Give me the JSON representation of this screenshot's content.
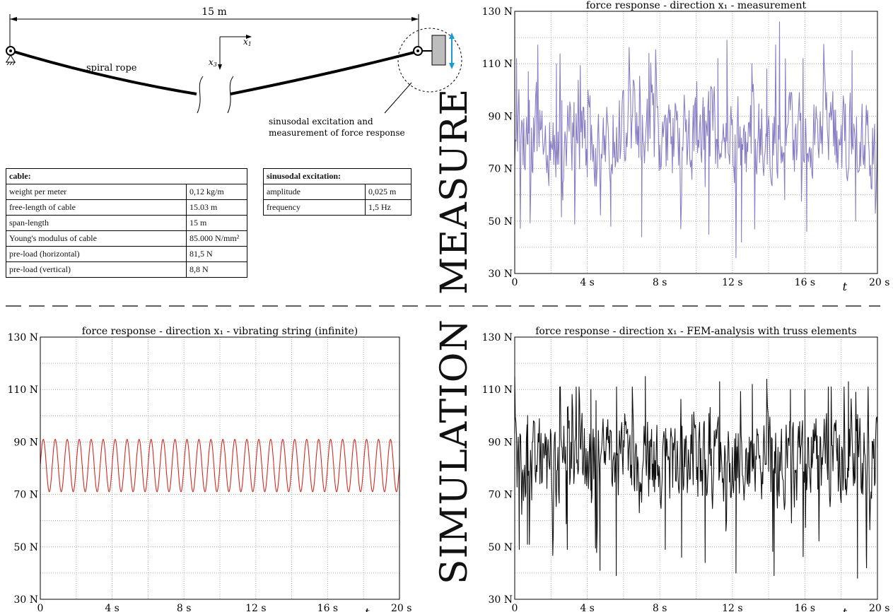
{
  "diagram": {
    "span_label": "15 m",
    "rope_label": "spiral rope",
    "x1_label": "x",
    "x1_sub": "1",
    "x3_label": "x",
    "x3_sub": "3",
    "note_line1": "sinusodal excitation and",
    "note_line2": "measurement of force response",
    "arrow_color": "#1a9ad6"
  },
  "cable_table": {
    "header": "cable:",
    "rows": [
      {
        "label": "weight per meter",
        "value": "0,12 kg/m"
      },
      {
        "label": "free-length of cable",
        "value": "15.03 m"
      },
      {
        "label": "span-length",
        "value": "15 m"
      },
      {
        "label": "Young's modulus of cable",
        "value": "85.000 N/mm²"
      },
      {
        "label": "pre-load (horizontal)",
        "value": "81,5 N"
      },
      {
        "label": "pre-load (vertical)",
        "value": "8,8 N"
      }
    ]
  },
  "excitation_table": {
    "header": "sinusodal excitation:",
    "rows": [
      {
        "label": "amplitude",
        "value": "0,025 m"
      },
      {
        "label": "frequency",
        "value": "1,5 Hz"
      }
    ]
  },
  "side_labels": {
    "measure": "MEASURE",
    "simulation": "SIMULATION"
  },
  "chart_data": [
    {
      "id": "measurement",
      "type": "line",
      "title": "force response - direction x₁ - measurement",
      "xlabel": "t",
      "xlim": [
        0,
        20
      ],
      "ylim": [
        30,
        130
      ],
      "xticks": [
        "0",
        "4 s",
        "8 s",
        "12 s",
        "16 s",
        "20 s"
      ],
      "yticks": [
        "30 N",
        "50 N",
        "70 N",
        "90 N",
        "110 N",
        "130 N"
      ],
      "grid": true,
      "color": "#8a7fc4",
      "signal": {
        "kind": "irregular",
        "mean": 82,
        "min": 36,
        "max": 126,
        "points": 520
      },
      "values": [
        [
          0,
          72
        ],
        [
          0.1,
          112
        ],
        [
          0.75,
          107
        ],
        [
          2.3,
          110
        ],
        [
          2.6,
          96
        ],
        [
          2.65,
          58
        ],
        [
          5.3,
          48
        ],
        [
          7.0,
          44
        ],
        [
          7.4,
          114
        ],
        [
          10.7,
          45
        ],
        [
          11.2,
          112
        ],
        [
          11.7,
          119
        ],
        [
          12.2,
          36
        ],
        [
          12.5,
          42
        ],
        [
          13.9,
          108
        ],
        [
          14.6,
          126
        ],
        [
          15.9,
          112
        ],
        [
          16.1,
          46
        ],
        [
          18.6,
          115
        ],
        [
          18.8,
          50
        ],
        [
          20,
          92
        ]
      ]
    },
    {
      "id": "vibrating-string",
      "type": "line",
      "title": "force response - direction x₁ - vibrating string (infinite)",
      "xlabel": "t",
      "xlim": [
        0,
        20
      ],
      "ylim": [
        30,
        130
      ],
      "xticks": [
        "0",
        "4 s",
        "8 s",
        "12 s",
        "16 s",
        "20 s"
      ],
      "yticks": [
        "30 N",
        "50 N",
        "70 N",
        "90 N",
        "110 N",
        "130 N"
      ],
      "grid": true,
      "color": "#d42a20",
      "signal": {
        "kind": "sine",
        "mean": 81,
        "amplitude": 10,
        "frequency_hz": 1.5,
        "points": 1200
      }
    },
    {
      "id": "fem-truss",
      "type": "line",
      "title": "force response - direction x₁ - FEM-analysis with truss elements",
      "xlabel": "t",
      "xlim": [
        0,
        20
      ],
      "ylim": [
        30,
        130
      ],
      "xticks": [
        "0",
        "4 s",
        "8 s",
        "12 s",
        "16 s",
        "20 s"
      ],
      "yticks": [
        "30 N",
        "50 N",
        "70 N",
        "90 N",
        "110 N",
        "130 N"
      ],
      "grid": true,
      "color": "#111111",
      "signal": {
        "kind": "irregular",
        "mean": 82,
        "min": 38,
        "max": 115,
        "points": 620
      },
      "values": [
        [
          0,
          115
        ],
        [
          0.25,
          49
        ],
        [
          0.7,
          51
        ],
        [
          2.9,
          49
        ],
        [
          4.2,
          110
        ],
        [
          4.7,
          41
        ],
        [
          5.6,
          39
        ],
        [
          7.2,
          115
        ],
        [
          8.3,
          49
        ],
        [
          9.2,
          46
        ],
        [
          10.5,
          44
        ],
        [
          11.3,
          113
        ],
        [
          12.2,
          40
        ],
        [
          13.1,
          112
        ],
        [
          13.9,
          114
        ],
        [
          14.3,
          39
        ],
        [
          15.2,
          110
        ],
        [
          16.0,
          110
        ],
        [
          18.4,
          113
        ],
        [
          18.9,
          38
        ],
        [
          19.4,
          42
        ],
        [
          20,
          88
        ]
      ]
    }
  ]
}
